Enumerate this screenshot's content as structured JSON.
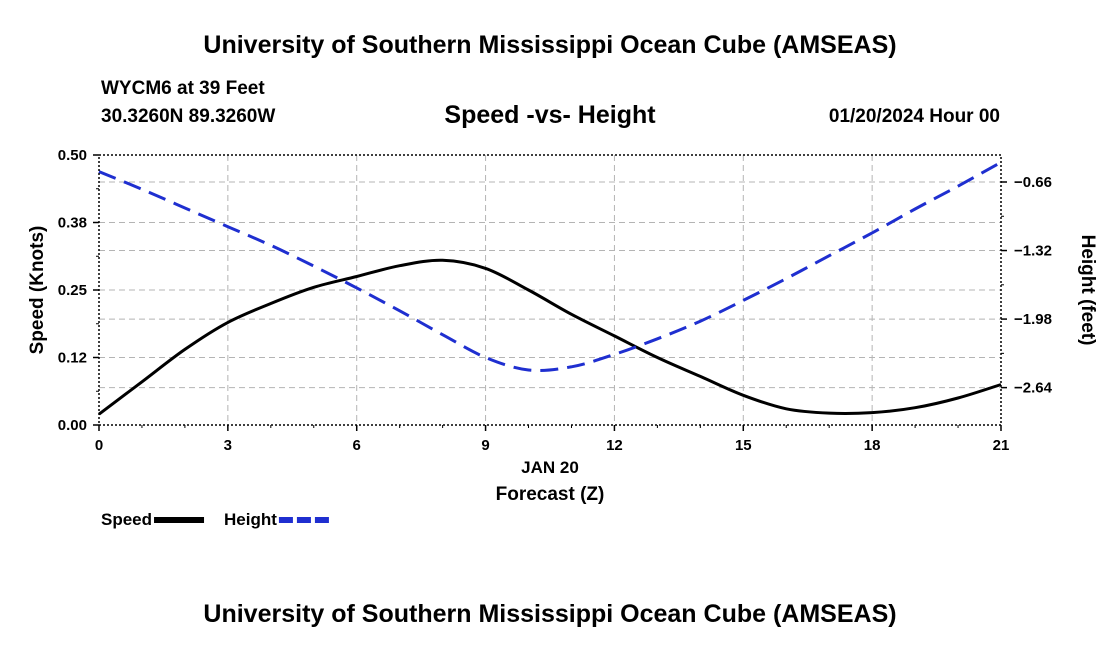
{
  "header": {
    "title": "University of Southern Mississippi Ocean Cube (AMSEAS)",
    "station": "WYCM6 at 39 Feet",
    "coords": "30.3260N  89.3260W",
    "plot_title": "Speed -vs- Height",
    "datetime": "01/20/2024 Hour 00"
  },
  "footer": {
    "title": "University of Southern Mississippi Ocean Cube (AMSEAS)"
  },
  "chart_data": {
    "type": "line",
    "title": "Speed -vs- Height",
    "xlabel": "Forecast (Z)",
    "xlabel_date": "JAN 20",
    "ylabel": "Speed (Knots)",
    "y2label": "Height (feet)",
    "xlim": [
      0,
      21
    ],
    "ylim": [
      0,
      0.5
    ],
    "y2lim": [
      -3.0,
      -0.4
    ],
    "x_ticks": [
      0,
      3,
      6,
      9,
      12,
      15,
      18,
      21
    ],
    "y_ticks": [
      0.0,
      0.125,
      0.25,
      0.375,
      0.5
    ],
    "y_tick_labels": [
      "0.00",
      "0.12",
      "0.25",
      "0.38",
      "0.50"
    ],
    "y2_ticks": [
      -0.66,
      -1.32,
      -1.98,
      -2.64
    ],
    "y2_tick_labels": [
      "−0.66",
      "−1.32",
      "−1.98",
      "−2.64"
    ],
    "grid": true,
    "series": [
      {
        "name": "Speed",
        "axis": "left",
        "color": "#000000",
        "style": "solid",
        "x": [
          0,
          1,
          2,
          3,
          4,
          5,
          6,
          7,
          8,
          9,
          10,
          11,
          12,
          13,
          14,
          15,
          16,
          17,
          18,
          19,
          20,
          21
        ],
        "values": [
          0.02,
          0.08,
          0.14,
          0.19,
          0.225,
          0.255,
          0.275,
          0.295,
          0.305,
          0.29,
          0.25,
          0.205,
          0.165,
          0.125,
          0.09,
          0.055,
          0.03,
          0.022,
          0.023,
          0.032,
          0.05,
          0.075
        ]
      },
      {
        "name": "Height",
        "axis": "right",
        "color": "#1f2fd0",
        "style": "dashed",
        "x": [
          0,
          1,
          2,
          3,
          4,
          5,
          6,
          7,
          8,
          9,
          10,
          11,
          12,
          13,
          14,
          15,
          16,
          17,
          18,
          19,
          20,
          21
        ],
        "values": [
          -0.56,
          -0.73,
          -0.91,
          -1.09,
          -1.27,
          -1.47,
          -1.68,
          -1.9,
          -2.13,
          -2.35,
          -2.47,
          -2.44,
          -2.32,
          -2.17,
          -2.0,
          -1.8,
          -1.59,
          -1.37,
          -1.15,
          -0.92,
          -0.7,
          -0.47
        ]
      }
    ],
    "legend": [
      {
        "label": "Speed",
        "color": "#000000",
        "style": "solid"
      },
      {
        "label": "Height",
        "color": "#1f2fd0",
        "style": "dashed"
      }
    ]
  }
}
